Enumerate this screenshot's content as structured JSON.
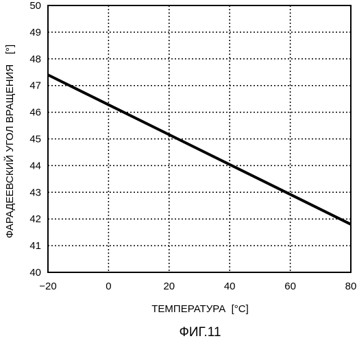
{
  "chart_data": {
    "type": "line",
    "caption": "ФИГ.11",
    "xlabel": "ТЕМПЕРАТУРА  [°C]",
    "ylabel": "ФАРАДЕЕВСКИЙ УГОЛ ВРАЩЕНИЯ",
    "ylabel_unit": "[°]",
    "xlim": [
      -20,
      80
    ],
    "ylim": [
      40,
      50
    ],
    "x_ticks": [
      "−20",
      "0",
      "20",
      "40",
      "60",
      "80"
    ],
    "y_ticks": [
      "40",
      "41",
      "42",
      "43",
      "44",
      "45",
      "46",
      "47",
      "48",
      "49",
      "50"
    ],
    "grid": true,
    "series": [
      {
        "x": [
          -20,
          80
        ],
        "y": [
          47.4,
          41.8
        ]
      }
    ]
  }
}
